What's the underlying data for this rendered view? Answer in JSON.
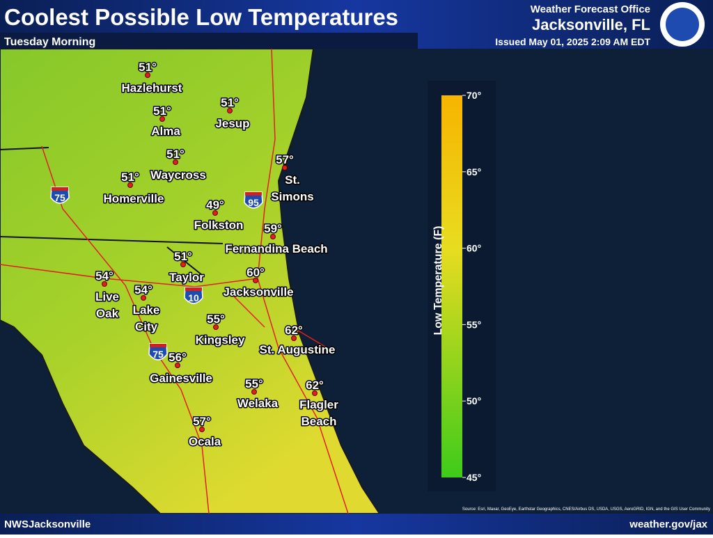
{
  "header": {
    "title": "Coolest Possible Low Temperatures",
    "subtitle": "Tuesday Morning",
    "office": "Weather Forecast Office",
    "location": "Jacksonville, FL",
    "issued": "Issued May 01, 2025 2:09 AM EDT"
  },
  "cities": [
    {
      "name": [
        "Hazlehurst"
      ],
      "temp": "51°"
    },
    {
      "name": [
        "Alma"
      ],
      "temp": "51°"
    },
    {
      "name": [
        "Jesup"
      ],
      "temp": "51°"
    },
    {
      "name": [
        "Waycross"
      ],
      "temp": "51°"
    },
    {
      "name": [
        "Homerville"
      ],
      "temp": "51°"
    },
    {
      "name": [
        "St.",
        "Simons"
      ],
      "temp": "57°"
    },
    {
      "name": [
        "Folkston"
      ],
      "temp": "49°"
    },
    {
      "name": [
        "Fernandina Beach"
      ],
      "temp": "59°"
    },
    {
      "name": [
        "Taylor"
      ],
      "temp": "51°"
    },
    {
      "name": [
        "Jacksonville"
      ],
      "temp": "60°"
    },
    {
      "name": [
        "Live",
        "Oak"
      ],
      "temp": "54°"
    },
    {
      "name": [
        "Lake",
        "City"
      ],
      "temp": "54°"
    },
    {
      "name": [
        "Kingsley"
      ],
      "temp": "55°"
    },
    {
      "name": [
        "St. Augustine"
      ],
      "temp": "62°"
    },
    {
      "name": [
        "Gainesville"
      ],
      "temp": "56°"
    },
    {
      "name": [
        "Welaka"
      ],
      "temp": "55°"
    },
    {
      "name": [
        "Flagler",
        "Beach"
      ],
      "temp": "62°"
    },
    {
      "name": [
        "Ocala"
      ],
      "temp": "57°"
    }
  ],
  "interstates": [
    "75",
    "95",
    "10",
    "75"
  ],
  "legend": {
    "title": "Low Temperature (F)",
    "ticks": [
      "70°",
      "65°",
      "60°",
      "55°",
      "50°",
      "45°"
    ]
  },
  "source": "Source: Esri, Maxar, GeoEye, Earthstar Geographics, CNES/Airbus DS, USDA, USGS, AeroGRID, IGN, and the GIS User Community",
  "footer": {
    "left": "NWSJacksonville",
    "right": "weather.gov/jax"
  }
}
